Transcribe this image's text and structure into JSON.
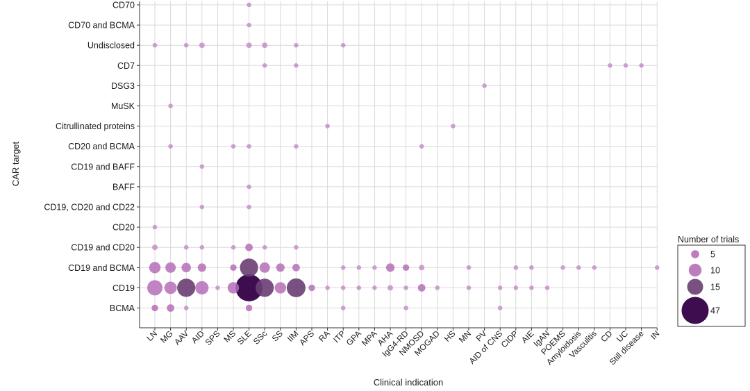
{
  "chart_data": {
    "type": "bubble-matrix",
    "xlabel": "Clinical indication",
    "ylabel": "CAR target",
    "x_categories": [
      "LN",
      "MG",
      "AAV",
      "AID",
      "SPS",
      "MS",
      "SLE",
      "SSc",
      "SS",
      "IIM",
      "APS",
      "RA",
      "ITP",
      "GPA",
      "MPA",
      "AHA",
      "IgG4-RD",
      "NMOSD",
      "MOGAD",
      "HS",
      "MN",
      "PV",
      "AID of CNS",
      "CIDP",
      "AIE",
      "IgAN",
      "POEMS",
      "Amyloidosis",
      "Vasculitis",
      "CD",
      "UC",
      "Still disease",
      "IN"
    ],
    "y_categories": [
      "CD70",
      "CD70 and BCMA",
      "Undisclosed",
      "CD7",
      "DSG3",
      "MuSK",
      "Citrullinated proteins",
      "CD20 and BCMA",
      "CD19 and BAFF",
      "BAFF",
      "CD19, CD20 and CD22",
      "CD20",
      "CD19 and CD20",
      "CD19 and BCMA",
      "CD19",
      "BCMA"
    ],
    "points": [
      {
        "x": "SLE",
        "y": "CD70",
        "n": 1
      },
      {
        "x": "SLE",
        "y": "CD70 and BCMA",
        "n": 1
      },
      {
        "x": "LN",
        "y": "Undisclosed",
        "n": 1
      },
      {
        "x": "AAV",
        "y": "Undisclosed",
        "n": 1
      },
      {
        "x": "AID",
        "y": "Undisclosed",
        "n": 2
      },
      {
        "x": "SLE",
        "y": "Undisclosed",
        "n": 2
      },
      {
        "x": "SSc",
        "y": "Undisclosed",
        "n": 2
      },
      {
        "x": "IIM",
        "y": "Undisclosed",
        "n": 1
      },
      {
        "x": "ITP",
        "y": "Undisclosed",
        "n": 1
      },
      {
        "x": "SSc",
        "y": "CD7",
        "n": 1
      },
      {
        "x": "IIM",
        "y": "CD7",
        "n": 1
      },
      {
        "x": "CD",
        "y": "CD7",
        "n": 1
      },
      {
        "x": "UC",
        "y": "CD7",
        "n": 1
      },
      {
        "x": "Still disease",
        "y": "CD7",
        "n": 1
      },
      {
        "x": "PV",
        "y": "DSG3",
        "n": 1
      },
      {
        "x": "MG",
        "y": "MuSK",
        "n": 1
      },
      {
        "x": "RA",
        "y": "Citrullinated proteins",
        "n": 1
      },
      {
        "x": "HS",
        "y": "Citrullinated proteins",
        "n": 1
      },
      {
        "x": "MG",
        "y": "CD20 and BCMA",
        "n": 1
      },
      {
        "x": "MS",
        "y": "CD20 and BCMA",
        "n": 1
      },
      {
        "x": "SLE",
        "y": "CD20 and BCMA",
        "n": 1
      },
      {
        "x": "IIM",
        "y": "CD20 and BCMA",
        "n": 1
      },
      {
        "x": "NMOSD",
        "y": "CD20 and BCMA",
        "n": 1
      },
      {
        "x": "AID",
        "y": "CD19 and BAFF",
        "n": 1
      },
      {
        "x": "SLE",
        "y": "BAFF",
        "n": 1
      },
      {
        "x": "AID",
        "y": "CD19, CD20 and CD22",
        "n": 1
      },
      {
        "x": "SLE",
        "y": "CD19, CD20 and CD22",
        "n": 1
      },
      {
        "x": "LN",
        "y": "CD20",
        "n": 1
      },
      {
        "x": "LN",
        "y": "CD19 and CD20",
        "n": 2
      },
      {
        "x": "AAV",
        "y": "CD19 and CD20",
        "n": 1
      },
      {
        "x": "AID",
        "y": "CD19 and CD20",
        "n": 1
      },
      {
        "x": "MS",
        "y": "CD19 and CD20",
        "n": 1
      },
      {
        "x": "SLE",
        "y": "CD19 and CD20",
        "n": 4
      },
      {
        "x": "SSc",
        "y": "CD19 and CD20",
        "n": 1
      },
      {
        "x": "IIM",
        "y": "CD19 and CD20",
        "n": 1
      },
      {
        "x": "LN",
        "y": "CD19 and BCMA",
        "n": 8
      },
      {
        "x": "MG",
        "y": "CD19 and BCMA",
        "n": 7
      },
      {
        "x": "AAV",
        "y": "CD19 and BCMA",
        "n": 6
      },
      {
        "x": "AID",
        "y": "CD19 and BCMA",
        "n": 5
      },
      {
        "x": "MS",
        "y": "CD19 and BCMA",
        "n": 3
      },
      {
        "x": "SLE",
        "y": "CD19 and BCMA",
        "n": 15
      },
      {
        "x": "SSc",
        "y": "CD19 and BCMA",
        "n": 7
      },
      {
        "x": "SS",
        "y": "CD19 and BCMA",
        "n": 5
      },
      {
        "x": "IIM",
        "y": "CD19 and BCMA",
        "n": 4
      },
      {
        "x": "ITP",
        "y": "CD19 and BCMA",
        "n": 1
      },
      {
        "x": "GPA",
        "y": "CD19 and BCMA",
        "n": 1
      },
      {
        "x": "MPA",
        "y": "CD19 and BCMA",
        "n": 1
      },
      {
        "x": "AHA",
        "y": "CD19 and BCMA",
        "n": 5
      },
      {
        "x": "IgG4-RD",
        "y": "CD19 and BCMA",
        "n": 3
      },
      {
        "x": "NMOSD",
        "y": "CD19 and BCMA",
        "n": 2
      },
      {
        "x": "MN",
        "y": "CD19 and BCMA",
        "n": 1
      },
      {
        "x": "CIDP",
        "y": "CD19 and BCMA",
        "n": 1
      },
      {
        "x": "AIE",
        "y": "CD19 and BCMA",
        "n": 1
      },
      {
        "x": "POEMS",
        "y": "CD19 and BCMA",
        "n": 1
      },
      {
        "x": "Amyloidosis",
        "y": "CD19 and BCMA",
        "n": 1
      },
      {
        "x": "Vasculitis",
        "y": "CD19 and BCMA",
        "n": 1
      },
      {
        "x": "IN",
        "y": "CD19 and BCMA",
        "n": 1
      },
      {
        "x": "LN",
        "y": "CD19",
        "n": 12
      },
      {
        "x": "MG",
        "y": "CD19",
        "n": 9
      },
      {
        "x": "AAV",
        "y": "CD19",
        "n": 15
      },
      {
        "x": "AID",
        "y": "CD19",
        "n": 10
      },
      {
        "x": "SPS",
        "y": "CD19",
        "n": 1
      },
      {
        "x": "MS",
        "y": "CD19",
        "n": 8
      },
      {
        "x": "SLE",
        "y": "CD19",
        "n": 47
      },
      {
        "x": "SSc",
        "y": "CD19",
        "n": 15
      },
      {
        "x": "SS",
        "y": "CD19",
        "n": 8
      },
      {
        "x": "IIM",
        "y": "CD19",
        "n": 18
      },
      {
        "x": "APS",
        "y": "CD19",
        "n": 3
      },
      {
        "x": "RA",
        "y": "CD19",
        "n": 1
      },
      {
        "x": "ITP",
        "y": "CD19",
        "n": 1
      },
      {
        "x": "GPA",
        "y": "CD19",
        "n": 1
      },
      {
        "x": "MPA",
        "y": "CD19",
        "n": 1
      },
      {
        "x": "AHA",
        "y": "CD19",
        "n": 2
      },
      {
        "x": "IgG4-RD",
        "y": "CD19",
        "n": 1
      },
      {
        "x": "NMOSD",
        "y": "CD19",
        "n": 4
      },
      {
        "x": "MOGAD",
        "y": "CD19",
        "n": 1
      },
      {
        "x": "MN",
        "y": "CD19",
        "n": 1
      },
      {
        "x": "AID of CNS",
        "y": "CD19",
        "n": 1
      },
      {
        "x": "CIDP",
        "y": "CD19",
        "n": 1
      },
      {
        "x": "AIE",
        "y": "CD19",
        "n": 1
      },
      {
        "x": "IgAN",
        "y": "CD19",
        "n": 1
      },
      {
        "x": "LN",
        "y": "BCMA",
        "n": 3
      },
      {
        "x": "MG",
        "y": "BCMA",
        "n": 4
      },
      {
        "x": "AAV",
        "y": "BCMA",
        "n": 1
      },
      {
        "x": "SLE",
        "y": "BCMA",
        "n": 3
      },
      {
        "x": "ITP",
        "y": "BCMA",
        "n": 1
      },
      {
        "x": "IgG4-RD",
        "y": "BCMA",
        "n": 1
      },
      {
        "x": "AID of CNS",
        "y": "BCMA",
        "n": 1
      }
    ],
    "legend": {
      "title": "Number of trials",
      "entries": [
        5,
        10,
        15,
        47
      ],
      "placement": "right"
    },
    "colors": {
      "light": "#c48fc8",
      "mid": "#b56fb8",
      "dark": "#6a3e73",
      "darkest": "#3d0d4f",
      "grid": "#d9d9d9"
    }
  }
}
